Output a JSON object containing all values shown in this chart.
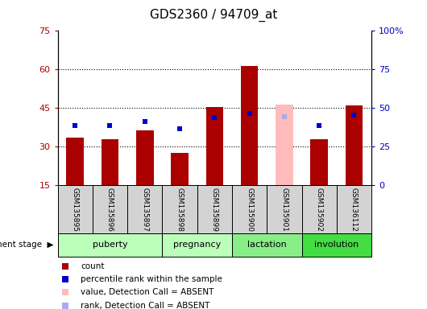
{
  "title": "GDS2360 / 94709_at",
  "samples": [
    "GSM135895",
    "GSM135896",
    "GSM135897",
    "GSM135898",
    "GSM135899",
    "GSM135900",
    "GSM135901",
    "GSM135902",
    "GSM136112"
  ],
  "count_values": [
    33.5,
    33.0,
    36.5,
    27.5,
    45.5,
    61.5,
    46.5,
    33.0,
    46.0
  ],
  "rank_values": [
    38.5,
    38.5,
    41.5,
    36.5,
    44.0,
    46.5,
    44.5,
    38.5,
    45.5
  ],
  "count_is_absent": [
    false,
    false,
    false,
    false,
    false,
    false,
    true,
    false,
    false
  ],
  "rank_is_absent": [
    false,
    false,
    false,
    false,
    false,
    false,
    true,
    false,
    false
  ],
  "stage_info": [
    {
      "name": "puberty",
      "indices": [
        0,
        1,
        2
      ],
      "color": "#bbffbb"
    },
    {
      "name": "pregnancy",
      "indices": [
        3,
        4
      ],
      "color": "#bbffbb"
    },
    {
      "name": "lactation",
      "indices": [
        5,
        6
      ],
      "color": "#88ee88"
    },
    {
      "name": "involution",
      "indices": [
        7,
        8
      ],
      "color": "#44dd44"
    }
  ],
  "ylim_left": [
    15,
    75
  ],
  "ylim_right": [
    0,
    100
  ],
  "yticks_left": [
    15,
    30,
    45,
    60,
    75
  ],
  "yticks_right": [
    0,
    25,
    50,
    75,
    100
  ],
  "ytick_labels_right": [
    "0",
    "25",
    "50",
    "75",
    "100%"
  ],
  "bar_color": "#aa0000",
  "absent_bar_color": "#ffbbbb",
  "rank_color": "#0000cc",
  "absent_rank_color": "#aaaaee",
  "grid_color": "#000000",
  "bg_color": "#ffffff"
}
